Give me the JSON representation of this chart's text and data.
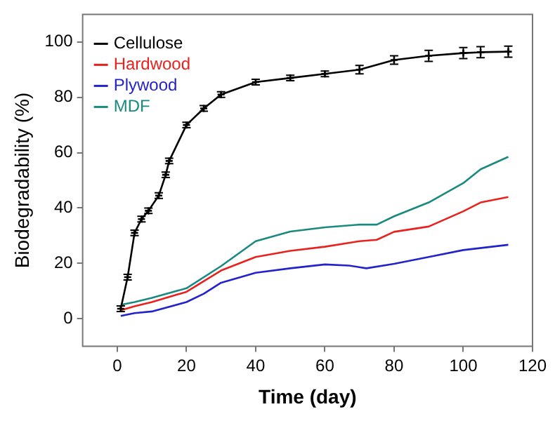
{
  "chart_data": {
    "type": "line",
    "xlabel": "Time (day)",
    "ylabel": "Biodegradability (%)",
    "xlim": [
      -10,
      120
    ],
    "xticks": [
      0,
      20,
      40,
      60,
      80,
      100,
      120
    ],
    "ylim": [
      -10,
      110
    ],
    "yticks": [
      0,
      20,
      40,
      60,
      80,
      100
    ],
    "grid": false,
    "legend": "top left",
    "marker": "none",
    "line_style": "solid",
    "series": [
      {
        "name": "Cellulose",
        "color": "#000000",
        "marker": "cross",
        "x": [
          1,
          3,
          5,
          7,
          9,
          12,
          14,
          15,
          20,
          25,
          30,
          40,
          50,
          60,
          70,
          80,
          90,
          100,
          105,
          113
        ],
        "values": [
          3.6,
          15,
          31,
          36,
          39,
          44.5,
          52,
          57,
          70,
          76,
          81,
          85.5,
          87,
          88.5,
          90,
          93.5,
          95,
          96,
          96.3,
          96.5
        ],
        "errors": [
          1,
          1,
          1,
          1,
          1,
          1,
          1,
          1,
          1,
          1,
          1,
          1,
          1,
          1,
          1.5,
          1.5,
          2,
          2,
          2,
          2
        ]
      },
      {
        "name": "Hardwood",
        "color": "#e8231f",
        "x": [
          1,
          5,
          10,
          20,
          30,
          40,
          50,
          60,
          70,
          75,
          80,
          90,
          100,
          105,
          113
        ],
        "values": [
          3,
          4.5,
          6,
          9.7,
          17.4,
          22.3,
          24.5,
          26,
          28,
          28.5,
          31.4,
          33.3,
          38.8,
          42,
          44
        ]
      },
      {
        "name": "Plywood",
        "color": "#2323cc",
        "x": [
          1,
          5,
          10,
          20,
          25,
          30,
          40,
          50,
          60,
          67,
          72,
          80,
          90,
          100,
          113
        ],
        "values": [
          1,
          2,
          2.6,
          6,
          9,
          13,
          16.6,
          18.2,
          19.6,
          19.2,
          18.2,
          19.8,
          22.3,
          24.8,
          26.7
        ]
      },
      {
        "name": "MDF",
        "color": "#1a8a80",
        "x": [
          1,
          5,
          10,
          20,
          30,
          40,
          50,
          60,
          70,
          75,
          80,
          90,
          100,
          105,
          113
        ],
        "values": [
          5,
          6,
          7.5,
          11,
          19,
          28,
          31.5,
          33,
          34,
          34,
          37,
          42,
          49,
          54,
          58.5
        ]
      }
    ]
  }
}
